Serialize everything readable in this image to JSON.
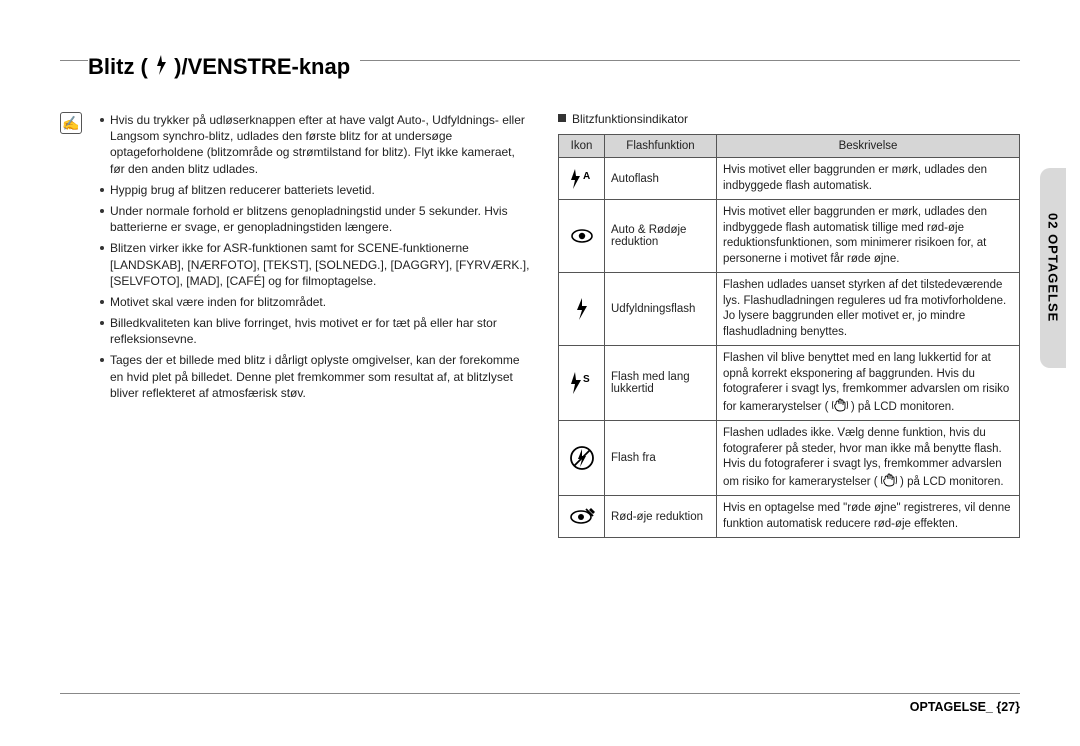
{
  "title": {
    "prefix": "Blitz (",
    "suffix": ")/VENSTRE-knap"
  },
  "note_icon_glyph": "✍",
  "left_notes": [
    "Hvis du trykker på udløserknappen efter at have valgt Auto-, Udfyldnings- eller Langsom synchro-blitz, udlades den første blitz for at undersøge optageforholdene (blitzområde og strømtilstand for blitz). Flyt ikke kameraet, før den anden blitz udlades.",
    "Hyppig brug af blitzen reducerer batteriets levetid.",
    "Under normale forhold er blitzens genopladningstid under 5 sekunder. Hvis batterierne er svage, er genopladningstiden længere.",
    "Blitzen virker ikke for ASR-funktionen samt for SCENE-funktionerne [LANDSKAB], [NÆRFOTO], [TEKST], [SOLNEDG.], [DAGGRY], [FYRVÆRK.], [SELVFOTO], [MAD], [CAFÉ] og for filmoptagelse.",
    "Motivet skal være inden for blitzområdet.",
    "Billedkvaliteten kan blive forringet, hvis motivet er for tæt på eller har stor refleksionsevne.",
    "Tages der et billede med blitz i dårligt oplyste omgivelser, kan der forekomme en hvid plet på billedet. Denne plet fremkommer som resultat af, at blitzlyset bliver reflekteret af atmosfærisk støv."
  ],
  "indicator_label": "Blitzfunktionsindikator",
  "table": {
    "headers": [
      "Ikon",
      "Flashfunktion",
      "Beskrivelse"
    ],
    "rows": [
      {
        "icon": "flash-auto",
        "func": "Autoflash",
        "desc": "Hvis motivet eller baggrunden er mørk, udlades den indbyggede flash automatisk."
      },
      {
        "icon": "eye",
        "func": "Auto & Rødøje reduktion",
        "desc": "Hvis motivet eller baggrunden er mørk, udlades den indbyggede flash automatisk tillige med rød-øje reduktionsfunktionen, som minimerer risikoen for, at personerne i motivet får røde øjne."
      },
      {
        "icon": "flash",
        "func": "Udfyldningsflash",
        "desc": "Flashen udlades uanset styrken af det tilstedeværende lys.\nFlashudladningen reguleres ud fra motivforholdene. Jo lysere baggrunden eller motivet er, jo mindre flashudladning benyttes."
      },
      {
        "icon": "flash-slow",
        "func": "Flash med lang lukkertid",
        "desc_pre": "Flashen vil blive benyttet med en lang lukkertid for at opnå korrekt eksponering af baggrunden. Hvis du fotograferer i svagt lys, fremkommer advarslen om risiko for kamerarystelser ( ",
        "desc_post": " ) på LCD monitoren."
      },
      {
        "icon": "flash-off",
        "func": "Flash fra",
        "desc_pre": "Flashen udlades ikke. Vælg denne funktion, hvis du fotograferer på steder, hvor man ikke må benytte flash. Hvis du fotograferer i svagt lys, fremkommer advarslen om risiko for kamerarystelser ( ",
        "desc_post": " ) på LCD monitoren."
      },
      {
        "icon": "redeye-fix",
        "func": "Rød-øje reduktion",
        "desc": "Hvis en optagelse med \"røde øjne\" registreres, vil denne funktion automatisk reducere rød-øje effekten."
      }
    ]
  },
  "side_tab": "02 OPTAGELSE",
  "footer": "OPTAGELSE_ {27}"
}
